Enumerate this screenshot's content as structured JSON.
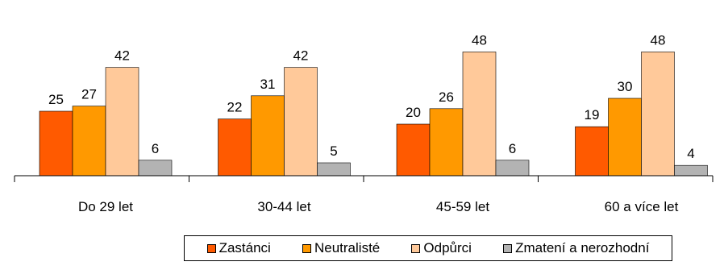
{
  "chart_data": {
    "type": "bar",
    "categories": [
      "Do 29 let",
      "30-44 let",
      "45-59 let",
      "60 a více let"
    ],
    "series": [
      {
        "name": "Zastánci",
        "values": [
          25,
          22,
          20,
          19
        ],
        "color": "#ff5a00"
      },
      {
        "name": "Neutralisté",
        "values": [
          27,
          31,
          26,
          30
        ],
        "color": "#ff9900"
      },
      {
        "name": "Odpůrci",
        "values": [
          42,
          42,
          48,
          48
        ],
        "color": "#ffc99a"
      },
      {
        "name": "Zmatení a nerozhodní",
        "values": [
          6,
          5,
          6,
          4
        ],
        "color": "#b3b3b3"
      }
    ],
    "legend_position": "bottom",
    "grid": false
  }
}
